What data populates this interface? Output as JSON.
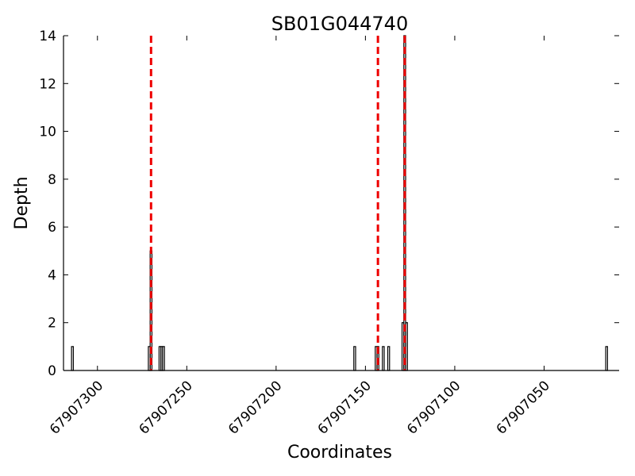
{
  "chart_data": {
    "type": "bar",
    "title": "SB01G044740",
    "xlabel": "Coordinates",
    "ylabel": "Depth",
    "xlim": [
      67907319,
      67907008
    ],
    "x_reversed": true,
    "ylim": [
      0,
      14
    ],
    "grid": false,
    "x_ticks": [
      67907300,
      67907250,
      67907200,
      67907150,
      67907100,
      67907050
    ],
    "y_ticks": [
      0,
      2,
      4,
      6,
      8,
      10,
      12,
      14
    ],
    "bar_color": "#000000",
    "reference_line_color": "#ee0000",
    "bars": [
      {
        "x": 67907314,
        "depth": 1
      },
      {
        "x": 67907271,
        "depth": 1
      },
      {
        "x": 67907270,
        "depth": 5
      },
      {
        "x": 67907265,
        "depth": 1
      },
      {
        "x": 67907264,
        "depth": 1
      },
      {
        "x": 67907263,
        "depth": 1
      },
      {
        "x": 67907156,
        "depth": 1
      },
      {
        "x": 67907144,
        "depth": 1
      },
      {
        "x": 67907143,
        "depth": 1
      },
      {
        "x": 67907140,
        "depth": 1
      },
      {
        "x": 67907137,
        "depth": 1
      },
      {
        "x": 67907129,
        "depth": 2
      },
      {
        "x": 67907128,
        "depth": 14
      },
      {
        "x": 67907127,
        "depth": 2
      },
      {
        "x": 67907015,
        "depth": 1
      }
    ],
    "reference_lines": [
      67907270,
      67907143,
      67907128
    ]
  }
}
